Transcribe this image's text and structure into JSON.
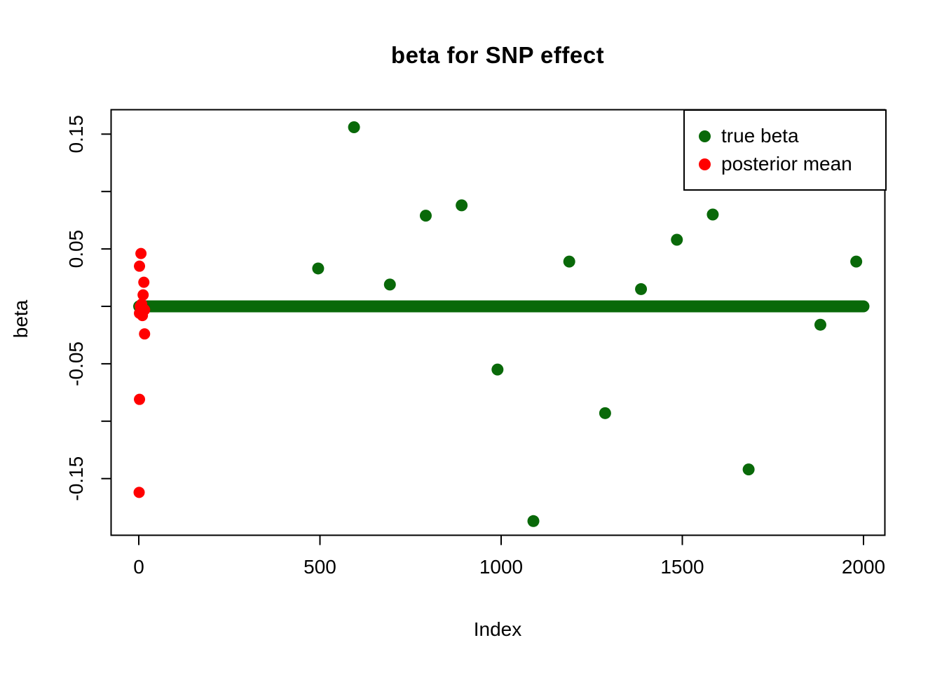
{
  "chart_data": {
    "type": "scatter",
    "title": "beta for SNP effect",
    "xlabel": "Index",
    "ylabel": "beta",
    "xlim": [
      -77,
      2058
    ],
    "ylim": [
      -0.199,
      0.171
    ],
    "grid": false,
    "legend_position": "top-right",
    "x_axis": {
      "ticks": [
        {
          "value": 0,
          "label": "0"
        },
        {
          "value": 500,
          "label": "500"
        },
        {
          "value": 1000,
          "label": "1000"
        },
        {
          "value": 1500,
          "label": "1500"
        },
        {
          "value": 2000,
          "label": "2000"
        }
      ]
    },
    "y_axis": {
      "ticks": [
        {
          "value": 0.15,
          "label": "0.15"
        },
        {
          "value": 0.1,
          "label": ""
        },
        {
          "value": 0.05,
          "label": "0.05"
        },
        {
          "value": 0.0,
          "label": ""
        },
        {
          "value": -0.05,
          "label": "-0.05"
        },
        {
          "value": -0.1,
          "label": ""
        },
        {
          "value": -0.15,
          "label": "-0.15"
        }
      ]
    },
    "series": [
      {
        "name": "true beta",
        "color": "#096909",
        "marker": "filled-circle",
        "points": [
          [
            495,
            0.033
          ],
          [
            594,
            0.156
          ],
          [
            693,
            0.019
          ],
          [
            792,
            0.079
          ],
          [
            891,
            0.088
          ],
          [
            990,
            -0.055
          ],
          [
            1089,
            -0.187
          ],
          [
            1188,
            0.039
          ],
          [
            1287,
            -0.093
          ],
          [
            1386,
            0.015
          ],
          [
            1485,
            0.058
          ],
          [
            1584,
            0.08
          ],
          [
            1683,
            -0.142
          ],
          [
            1881,
            -0.016
          ],
          [
            1980,
            0.039
          ]
        ],
        "zero_band": {
          "y": 0,
          "x_start": 1,
          "x_end": 2000,
          "description": "many overlapping points at beta = 0 forming a thick horizontal band"
        }
      },
      {
        "name": "posterior mean",
        "color": "#ff0000",
        "marker": "filled-circle",
        "points": [
          [
            6,
            0.046
          ],
          [
            2,
            0.035
          ],
          [
            14,
            0.021
          ],
          [
            12,
            0.01
          ],
          [
            8,
            0.002
          ],
          [
            4,
            0.0
          ],
          [
            16,
            -0.003
          ],
          [
            2,
            -0.006
          ],
          [
            10,
            -0.008
          ],
          [
            16,
            -0.024
          ],
          [
            2,
            -0.081
          ],
          [
            1,
            -0.162
          ]
        ]
      }
    ]
  }
}
